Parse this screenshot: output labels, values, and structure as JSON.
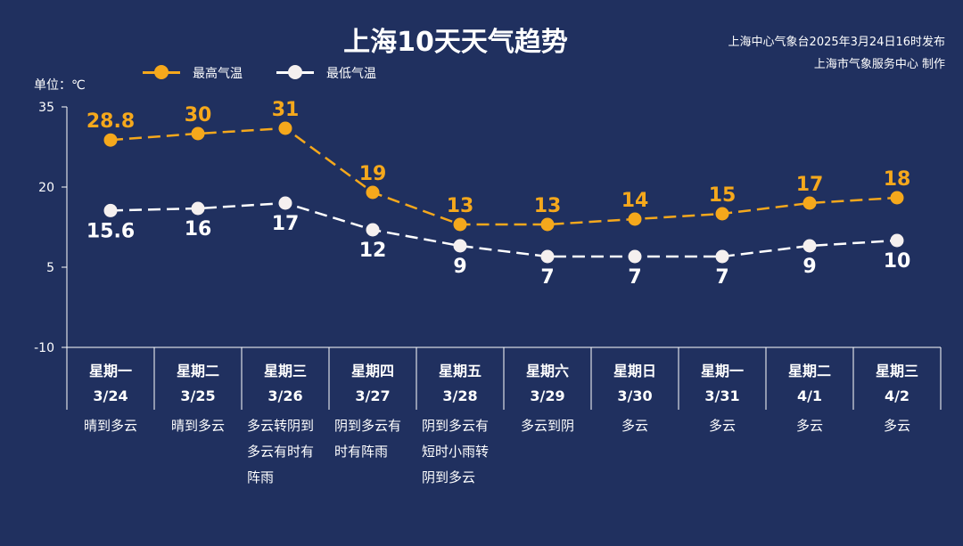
{
  "header": {
    "title": "上海10天天气趋势",
    "source_line1": "上海中心气象台2025年3月24日16时发布",
    "source_line2": "上海市气象服务中心 制作",
    "unit": "单位：℃"
  },
  "colors": {
    "background": "#20305f",
    "high": "#f5a81c",
    "low": "#ffffff",
    "grid": "#ffffff"
  },
  "chart_data": {
    "type": "line",
    "ylabel": "单位：℃",
    "ylim": [
      -10,
      35
    ],
    "yticks": [
      35,
      20,
      5,
      -10
    ],
    "grid": false,
    "legend_position": "top-left",
    "days": [
      {
        "weekday": "星期一",
        "date": "3/24",
        "weather": [
          "晴到多云"
        ]
      },
      {
        "weekday": "星期二",
        "date": "3/25",
        "weather": [
          "晴到多云"
        ]
      },
      {
        "weekday": "星期三",
        "date": "3/26",
        "weather": [
          "多云转阴到",
          "多云有时有",
          "阵雨"
        ]
      },
      {
        "weekday": "星期四",
        "date": "3/27",
        "weather": [
          "阴到多云有",
          "时有阵雨"
        ]
      },
      {
        "weekday": "星期五",
        "date": "3/28",
        "weather": [
          "阴到多云有",
          "短时小雨转",
          "阴到多云"
        ]
      },
      {
        "weekday": "星期六",
        "date": "3/29",
        "weather": [
          "多云到阴"
        ]
      },
      {
        "weekday": "星期日",
        "date": "3/30",
        "weather": [
          "多云"
        ]
      },
      {
        "weekday": "星期一",
        "date": "3/31",
        "weather": [
          "多云"
        ]
      },
      {
        "weekday": "星期二",
        "date": "4/1",
        "weather": [
          "多云"
        ]
      },
      {
        "weekday": "星期三",
        "date": "4/2",
        "weather": [
          "多云"
        ]
      }
    ],
    "series": [
      {
        "name": "最高气温",
        "values": [
          28.8,
          30,
          31,
          19,
          13,
          13,
          14,
          15,
          17,
          18
        ]
      },
      {
        "name": "最低气温",
        "values": [
          15.6,
          16,
          17,
          12,
          9,
          7,
          7,
          7,
          9,
          10
        ]
      }
    ],
    "labels": {
      "high": [
        "28.8",
        "30",
        "31",
        "19",
        "13",
        "13",
        "14",
        "15",
        "17",
        "18"
      ],
      "low": [
        "15.6",
        "16",
        "17",
        "12",
        "9",
        "7",
        "7",
        "7",
        "9",
        "10"
      ]
    }
  }
}
